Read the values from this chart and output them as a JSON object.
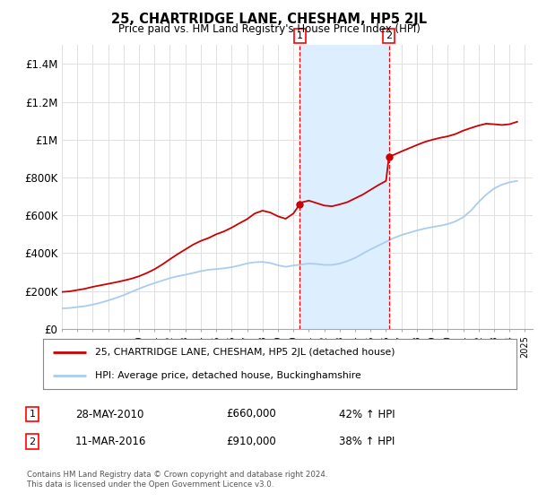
{
  "title": "25, CHARTRIDGE LANE, CHESHAM, HP5 2JL",
  "subtitle": "Price paid vs. HM Land Registry's House Price Index (HPI)",
  "ylim": [
    0,
    1500000
  ],
  "yticks": [
    0,
    200000,
    400000,
    600000,
    800000,
    1000000,
    1200000,
    1400000
  ],
  "ytick_labels": [
    "£0",
    "£200K",
    "£400K",
    "£600K",
    "£800K",
    "£1M",
    "£1.2M",
    "£1.4M"
  ],
  "grid_color": "#e0e0e0",
  "red_color": "#cc0000",
  "blue_color": "#aaccee",
  "shade_color": "#ddeeff",
  "sale1_year": 2010.42,
  "sale1_price": 660000,
  "sale2_year": 2016.19,
  "sale2_price": 910000,
  "legend_line1": "25, CHARTRIDGE LANE, CHESHAM, HP5 2JL (detached house)",
  "legend_line2": "HPI: Average price, detached house, Buckinghamshire",
  "table_row1_date": "28-MAY-2010",
  "table_row1_price": "£660,000",
  "table_row1_hpi": "42% ↑ HPI",
  "table_row2_date": "11-MAR-2016",
  "table_row2_price": "£910,000",
  "table_row2_hpi": "38% ↑ HPI",
  "footer": "Contains HM Land Registry data © Crown copyright and database right 2024.\nThis data is licensed under the Open Government Licence v3.0.",
  "red_years": [
    1995.0,
    1995.5,
    1996.0,
    1996.5,
    1997.0,
    1997.5,
    1998.0,
    1998.5,
    1999.0,
    1999.5,
    2000.0,
    2000.5,
    2001.0,
    2001.5,
    2002.0,
    2002.5,
    2003.0,
    2003.5,
    2004.0,
    2004.5,
    2005.0,
    2005.5,
    2006.0,
    2006.5,
    2007.0,
    2007.5,
    2008.0,
    2008.5,
    2009.0,
    2009.5,
    2010.0,
    2010.42,
    2010.5,
    2011.0,
    2011.5,
    2012.0,
    2012.5,
    2013.0,
    2013.5,
    2014.0,
    2014.5,
    2015.0,
    2015.5,
    2016.0,
    2016.19,
    2016.5,
    2017.0,
    2017.5,
    2018.0,
    2018.5,
    2019.0,
    2019.5,
    2020.0,
    2020.5,
    2021.0,
    2021.5,
    2022.0,
    2022.5,
    2023.0,
    2023.5,
    2024.0,
    2024.5
  ],
  "red_values": [
    195000,
    198000,
    205000,
    212000,
    222000,
    230000,
    238000,
    246000,
    255000,
    265000,
    278000,
    295000,
    315000,
    340000,
    368000,
    395000,
    420000,
    445000,
    465000,
    480000,
    500000,
    515000,
    535000,
    558000,
    580000,
    610000,
    625000,
    615000,
    595000,
    582000,
    610000,
    660000,
    668000,
    678000,
    665000,
    652000,
    648000,
    658000,
    670000,
    690000,
    710000,
    735000,
    760000,
    782000,
    910000,
    920000,
    938000,
    955000,
    972000,
    988000,
    1000000,
    1010000,
    1018000,
    1030000,
    1048000,
    1062000,
    1075000,
    1085000,
    1082000,
    1078000,
    1082000,
    1095000
  ],
  "blue_years": [
    1995.0,
    1995.5,
    1996.0,
    1996.5,
    1997.0,
    1997.5,
    1998.0,
    1998.5,
    1999.0,
    1999.5,
    2000.0,
    2000.5,
    2001.0,
    2001.5,
    2002.0,
    2002.5,
    2003.0,
    2003.5,
    2004.0,
    2004.5,
    2005.0,
    2005.5,
    2006.0,
    2006.5,
    2007.0,
    2007.5,
    2008.0,
    2008.5,
    2009.0,
    2009.5,
    2010.0,
    2010.5,
    2011.0,
    2011.5,
    2012.0,
    2012.5,
    2013.0,
    2013.5,
    2014.0,
    2014.5,
    2015.0,
    2015.5,
    2016.0,
    2016.5,
    2017.0,
    2017.5,
    2018.0,
    2018.5,
    2019.0,
    2019.5,
    2020.0,
    2020.5,
    2021.0,
    2021.5,
    2022.0,
    2022.5,
    2023.0,
    2023.5,
    2024.0,
    2024.5
  ],
  "blue_values": [
    108000,
    110000,
    115000,
    120000,
    128000,
    138000,
    150000,
    163000,
    178000,
    195000,
    212000,
    228000,
    242000,
    255000,
    268000,
    278000,
    286000,
    295000,
    305000,
    312000,
    316000,
    320000,
    326000,
    335000,
    346000,
    352000,
    354000,
    348000,
    336000,
    328000,
    335000,
    340000,
    345000,
    343000,
    338000,
    338000,
    345000,
    358000,
    375000,
    398000,
    420000,
    440000,
    460000,
    480000,
    496000,
    508000,
    520000,
    530000,
    538000,
    545000,
    554000,
    568000,
    590000,
    625000,
    670000,
    710000,
    742000,
    762000,
    775000,
    782000
  ],
  "xmin": 1995,
  "xmax": 2025.5
}
